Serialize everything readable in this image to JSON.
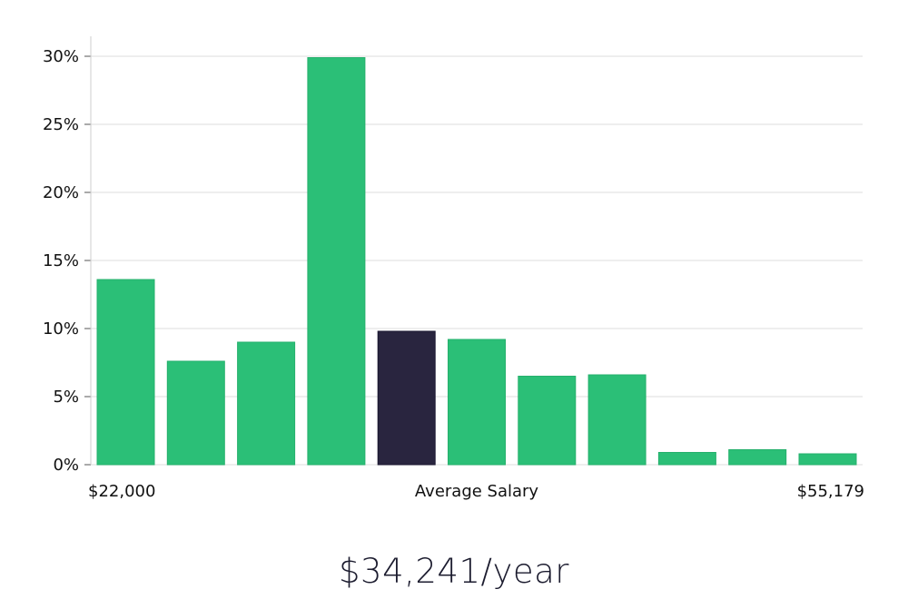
{
  "chart_data": {
    "type": "bar",
    "y_unit": "%",
    "ylim": [
      0,
      30
    ],
    "y_ticks": [
      0,
      5,
      10,
      15,
      20,
      25,
      30
    ],
    "y_tick_labels": [
      "0%",
      "5%",
      "10%",
      "15%",
      "20%",
      "25%",
      "30%"
    ],
    "values": [
      13.6,
      7.6,
      9.0,
      29.9,
      9.8,
      9.2,
      6.5,
      6.6,
      0.9,
      1.1,
      0.8
    ],
    "highlight_index": 4,
    "x_labels": {
      "min": "$22,000",
      "center": "Average Salary",
      "max": "$55,179"
    },
    "grid": true,
    "colors": {
      "bar": "#2bbf77",
      "highlight": "#29253f",
      "grid": "#e3e3e3",
      "axis": "#cccccc"
    }
  },
  "salary_text": "$34,241/year"
}
